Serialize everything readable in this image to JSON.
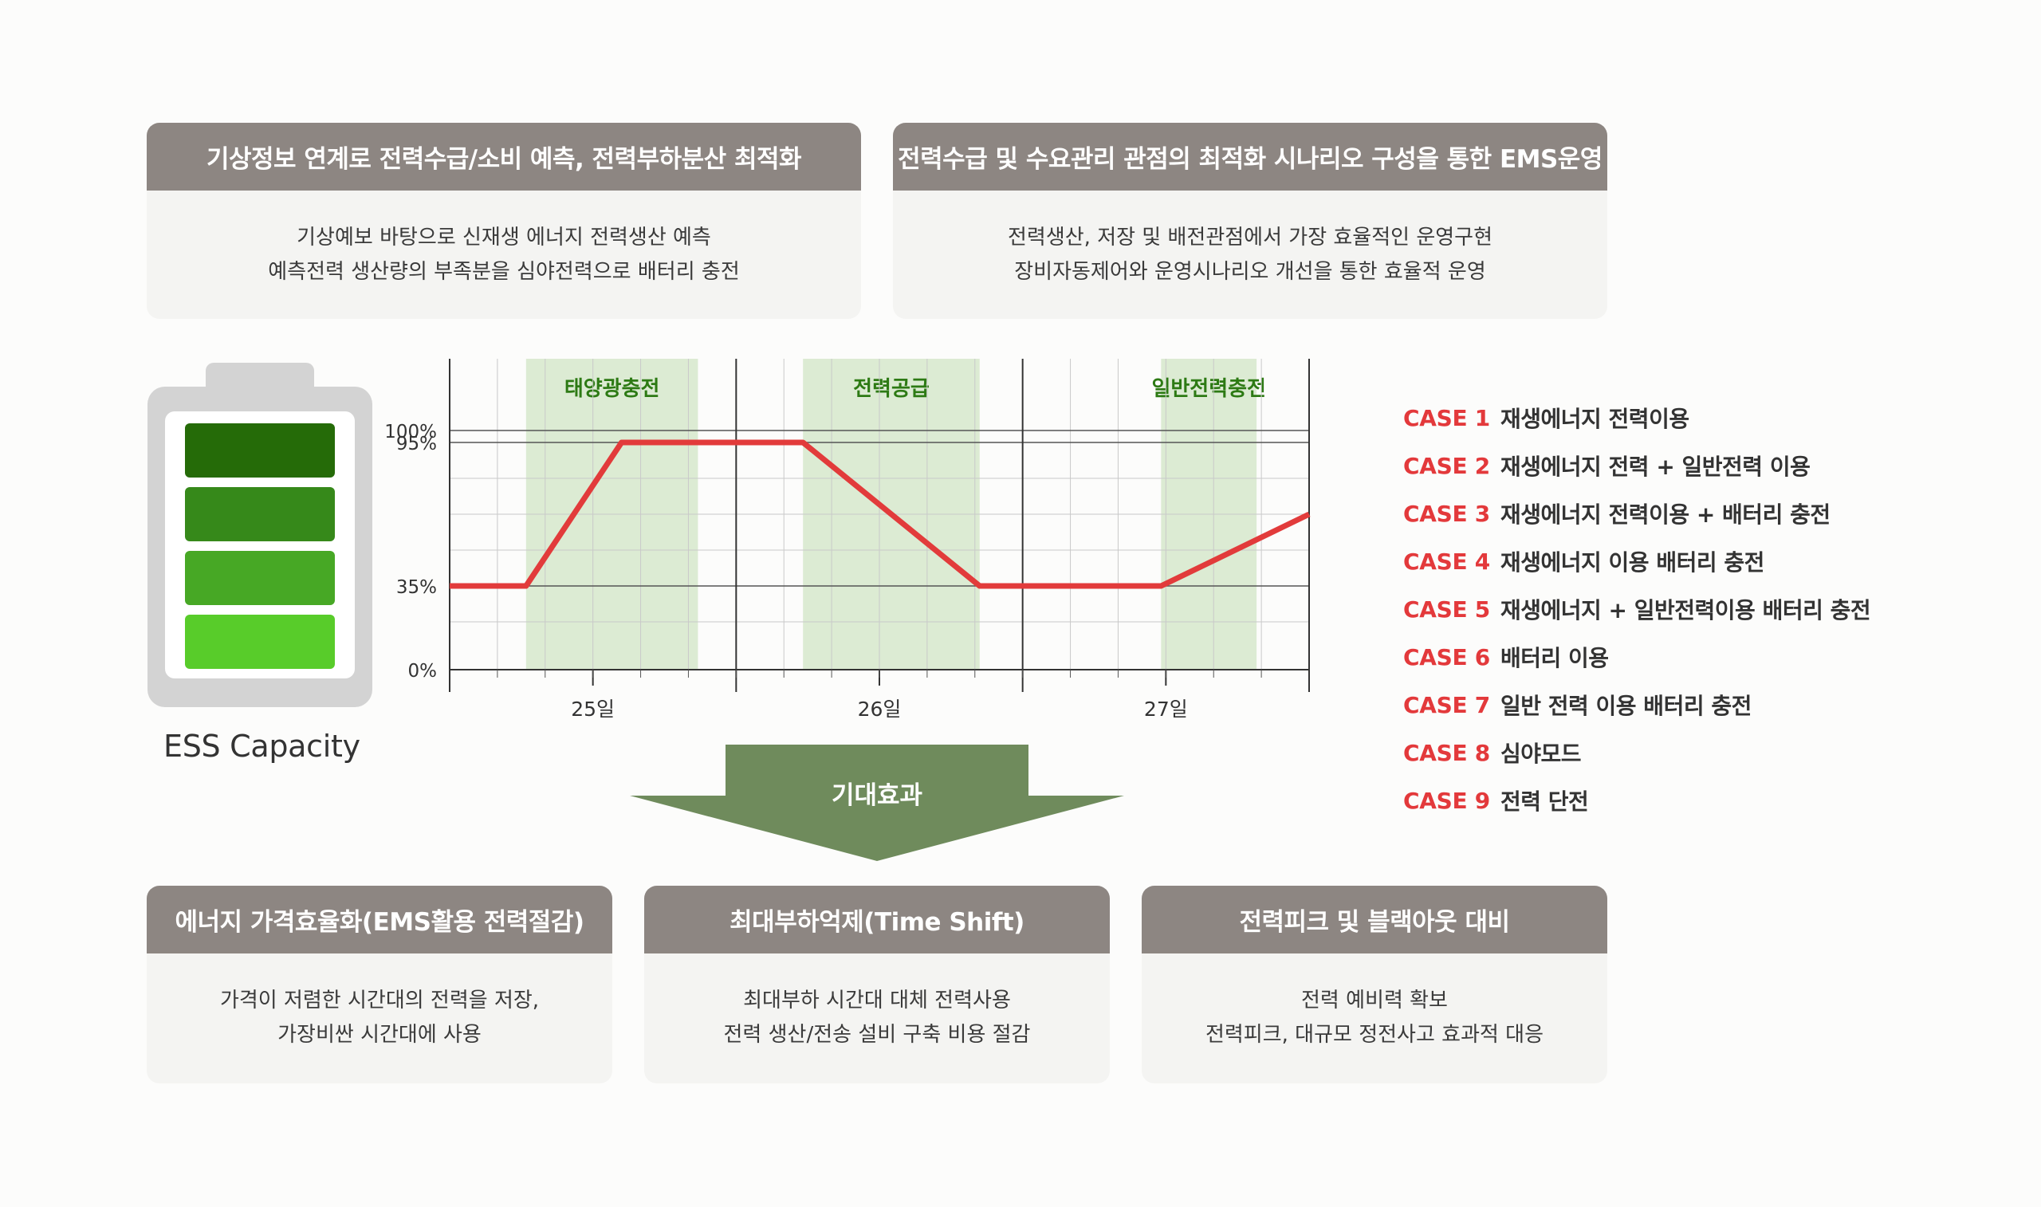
{
  "top_cards": [
    {
      "title": "기상정보 연계로 전력수급/소비 예측, 전력부하분산 최적화",
      "lines": [
        "기상예보 바탕으로 신재생 에너지 전력생산 예측",
        "예측전력 생산량의 부족분을 심야전력으로 배터리 충전"
      ]
    },
    {
      "title": "전력수급 및 수요관리 관점의 최적화 시나리오 구성을 통한 EMS운영",
      "lines": [
        "전력생산, 저장 및 배전관점에서 가장  효율적인 운영구현",
        "장비자동제어와 운영시나리오 개선을 통한 효율적 운영"
      ]
    }
  ],
  "battery": {
    "label": "ESS Capacity",
    "cell_colors": [
      "#256b08",
      "#36891a",
      "#47a825",
      "#58cc2a"
    ]
  },
  "chart_data": {
    "type": "line",
    "x_ticks": [
      "25일",
      "26일",
      "27일"
    ],
    "y_ticks": [
      "0%",
      "35%",
      "95%",
      "100%"
    ],
    "ylim": [
      0,
      100
    ],
    "series": [
      {
        "color": "#e23b3b",
        "points": [
          [
            0,
            35
          ],
          [
            0.8,
            35
          ],
          [
            1.8,
            95
          ],
          [
            3.7,
            95
          ],
          [
            5.55,
            35
          ],
          [
            7.45,
            35
          ],
          [
            9,
            65
          ]
        ]
      }
    ],
    "bands": [
      {
        "label": "태양광충전",
        "from": 0.8,
        "to": 2.6
      },
      {
        "label": "전력공급",
        "from": 3.7,
        "to": 5.55
      },
      {
        "label": "일반전력충전",
        "from": 7.45,
        "to": 8.45
      }
    ],
    "colors": {
      "line": "#e23b3b",
      "band": "#dcebd3",
      "band_label": "#2d7a14",
      "grid": "#c9c9c9"
    }
  },
  "cases": [
    {
      "code": "CASE 1",
      "desc": "재생에너지 전력이용"
    },
    {
      "code": "CASE 2",
      "desc": "재생에너지 전력 + 일반전력 이용"
    },
    {
      "code": "CASE 3",
      "desc": "재생에너지 전력이용 + 배터리 충전"
    },
    {
      "code": "CASE 4",
      "desc": "재생에너지 이용 배터리 충전"
    },
    {
      "code": "CASE 5",
      "desc": "재생에너지 + 일반전력이용 배터리 충전"
    },
    {
      "code": "CASE 6",
      "desc": "배터리 이용"
    },
    {
      "code": "CASE 7",
      "desc": "일반 전력 이용 배터리 충전"
    },
    {
      "code": "CASE 8",
      "desc": "심야모드"
    },
    {
      "code": "CASE 9",
      "desc": "전력 단전"
    }
  ],
  "arrow": {
    "label": "기대효과",
    "color": "#6f8b5c"
  },
  "bottom_cards": [
    {
      "title": "에너지 가격효율화(EMS활용 전력절감)",
      "lines": [
        "가격이 저렴한 시간대의 전력을 저장,",
        "가장비싼 시간대에 사용"
      ]
    },
    {
      "title": "최대부하억제(Time Shift)",
      "lines": [
        "최대부하 시간대 대체 전력사용",
        "전력 생산/전송 설비 구축 비용 절감"
      ]
    },
    {
      "title": "전력피크 및 블랙아웃 대비",
      "lines": [
        "전력 예비력 확보",
        "전력피크, 대규모 정전사고 효과적 대응"
      ]
    }
  ]
}
